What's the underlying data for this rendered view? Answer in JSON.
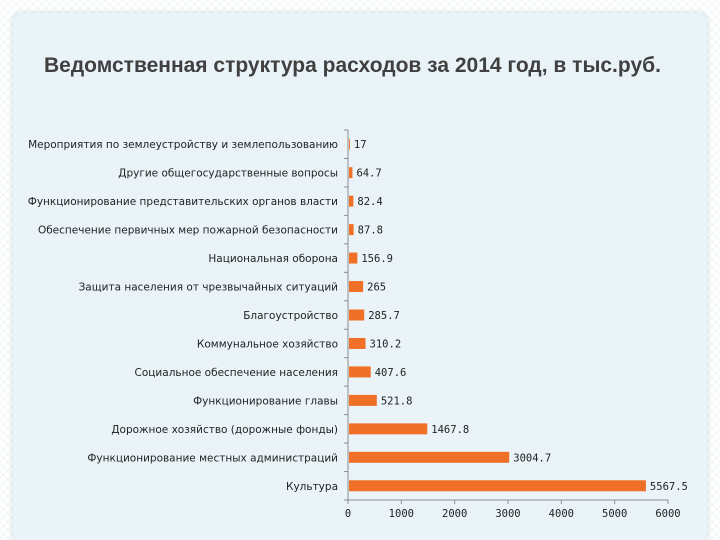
{
  "slide": {
    "title": "Ведомственная структура расходов за 2014 год, в тыс.руб."
  },
  "colors": {
    "bar": "#f07028",
    "panel": "#eaf4f8",
    "axis": "#8c8c8c"
  },
  "chart_data": {
    "type": "bar",
    "orientation": "horizontal",
    "title": "",
    "xlabel": "",
    "ylabel": "",
    "xlim": [
      0,
      6000
    ],
    "x_ticks": [
      "0",
      "1000",
      "2000",
      "3000",
      "4000",
      "5000",
      "6000"
    ],
    "grid": false,
    "legend": "none",
    "categories": [
      "Мероприятия по землеустройству и землепользованию",
      "Другие общегосударственные вопросы",
      "Функционирование представительских органов власти",
      "Обеспечение первичных мер пожарной безопасности",
      "Национальная оборона",
      "Защита населения от чрезвычайных ситуаций",
      "Благоустройство",
      "Коммунальное хозяйство",
      "Социальное обеспечение населения",
      "Функционирование главы",
      "Дорожное хозяйство (дорожные фонды)",
      "Функционирование  местных администраций",
      "Культура"
    ],
    "values": [
      17,
      64.7,
      82.4,
      87.8,
      156.9,
      265,
      285.7,
      310.2,
      407.6,
      521.8,
      1467.8,
      3004.7,
      5567.5
    ],
    "value_labels": [
      "17",
      "64.7",
      "82.4",
      "87.8",
      "156.9",
      "265",
      "285.7",
      "310.2",
      "407.6",
      "521.8",
      "1467.8",
      "3004.7",
      "5567.5"
    ]
  }
}
